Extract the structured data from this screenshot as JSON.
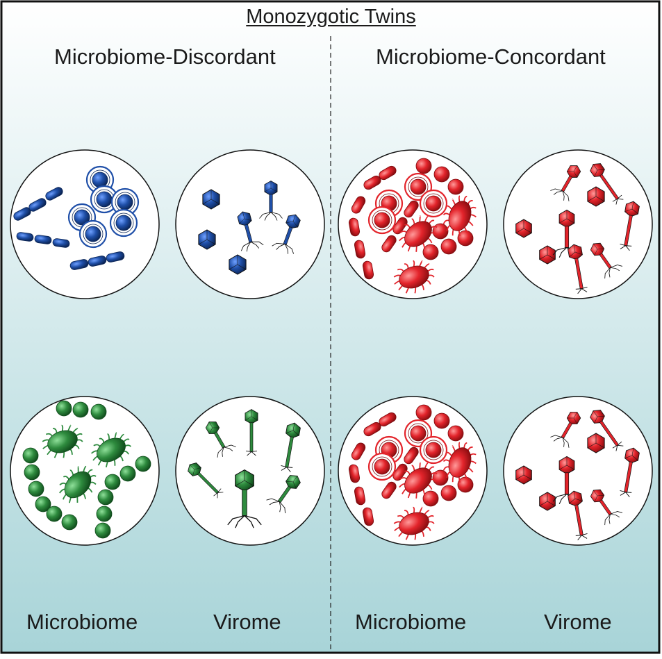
{
  "title": "Monozygotic Twins",
  "groups": [
    {
      "label": "Microbiome-Discordant"
    },
    {
      "label": "Microbiome-Concordant"
    }
  ],
  "columns": [
    "Microbiome",
    "Virome",
    "Microbiome",
    "Virome"
  ],
  "colors": {
    "blue": "#1f4fa8",
    "green": "#2e8b3e",
    "red": "#e3242b",
    "background_top": "#ffffff",
    "background_bottom": "#a8d4d8"
  },
  "panels": [
    {
      "id": "disc-twin1-microbiome",
      "color": "blue",
      "kind": "microbiome"
    },
    {
      "id": "disc-twin1-virome",
      "color": "blue",
      "kind": "virome"
    },
    {
      "id": "conc-twin1-microbiome",
      "color": "red",
      "kind": "microbiome"
    },
    {
      "id": "conc-twin1-virome",
      "color": "red",
      "kind": "virome"
    },
    {
      "id": "disc-twin2-microbiome",
      "color": "green",
      "kind": "microbiome"
    },
    {
      "id": "disc-twin2-virome",
      "color": "green",
      "kind": "virome"
    },
    {
      "id": "conc-twin2-microbiome",
      "color": "red",
      "kind": "microbiome"
    },
    {
      "id": "conc-twin2-virome",
      "color": "red",
      "kind": "virome"
    }
  ]
}
